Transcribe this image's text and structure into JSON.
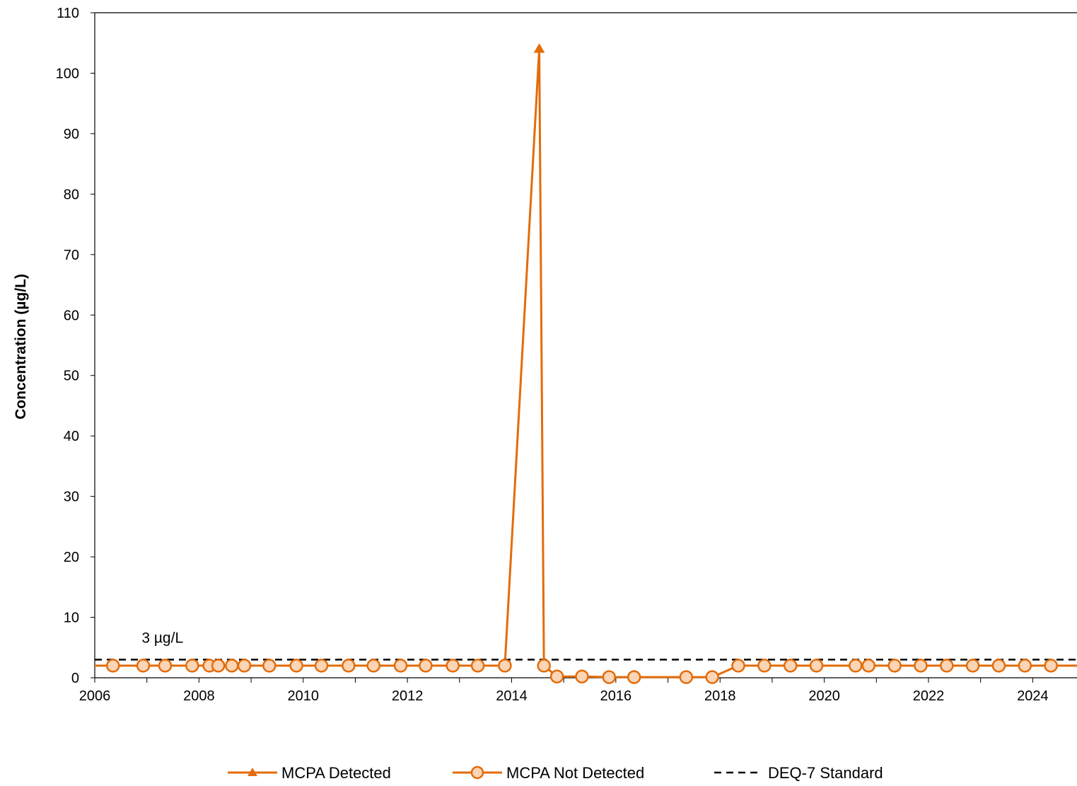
{
  "chart_data": {
    "type": "line",
    "ylabel": "Concentration (µg/L)",
    "xlabel": "",
    "xlim": [
      2006,
      2024.85
    ],
    "ylim": [
      0,
      110
    ],
    "x_ticks": [
      2006,
      2008,
      2010,
      2012,
      2014,
      2016,
      2018,
      2020,
      2022,
      2024
    ],
    "x_tick_labels": [
      "2006",
      "2008",
      "2010",
      "2012",
      "2014",
      "2016",
      "2018",
      "2020",
      "2022",
      "2024"
    ],
    "y_ticks": [
      0,
      10,
      20,
      30,
      40,
      50,
      60,
      70,
      80,
      90,
      100,
      110
    ],
    "y_tick_labels": [
      "0",
      "10",
      "20",
      "30",
      "40",
      "50",
      "60",
      "70",
      "80",
      "90",
      "100",
      "110"
    ],
    "grid": false,
    "legend_position": "bottom",
    "colors": {
      "series": "#E36C0A",
      "marker_fill": "#FBD5B5",
      "standard": "#000000"
    },
    "connector_line": {
      "x": [
        2006,
        2006.35,
        2006.93,
        2007.35,
        2007.87,
        2008.2,
        2008.37,
        2008.63,
        2008.87,
        2009.35,
        2009.87,
        2010.35,
        2010.87,
        2011.35,
        2011.87,
        2012.35,
        2012.87,
        2013.35,
        2013.87,
        2014.53,
        2014.62,
        2014.87,
        2015.35,
        2015.87,
        2016.35,
        2017.35,
        2017.85,
        2018.35,
        2018.85,
        2019.35,
        2019.85,
        2020.6,
        2020.85,
        2021.35,
        2021.85,
        2022.35,
        2022.85,
        2023.35,
        2023.85,
        2024.35,
        2024.85
      ],
      "y": [
        2,
        2,
        2,
        2,
        2,
        2,
        2,
        2,
        2,
        2,
        2,
        2,
        2,
        2,
        2,
        2,
        2,
        2,
        2,
        104,
        2,
        0.2,
        0.2,
        0.1,
        0.1,
        0.1,
        0.1,
        2,
        2,
        2,
        2,
        2,
        2,
        2,
        2,
        2,
        2,
        2,
        2,
        2,
        2
      ]
    },
    "series": [
      {
        "name": "MCPA Detected",
        "marker": "triangle",
        "x": [
          2014.53
        ],
        "y": [
          104
        ]
      },
      {
        "name": "MCPA Not Detected",
        "marker": "circle",
        "x": [
          2006.35,
          2006.93,
          2007.35,
          2007.87,
          2008.2,
          2008.37,
          2008.63,
          2008.87,
          2009.35,
          2009.87,
          2010.35,
          2010.87,
          2011.35,
          2011.87,
          2012.35,
          2012.87,
          2013.35,
          2013.87,
          2014.62,
          2014.87,
          2015.35,
          2015.87,
          2016.35,
          2017.35,
          2017.85,
          2018.35,
          2018.85,
          2019.35,
          2019.85,
          2020.6,
          2020.85,
          2021.35,
          2021.85,
          2022.35,
          2022.85,
          2023.35,
          2023.85,
          2024.35
        ],
        "y": [
          2,
          2,
          2,
          2,
          2,
          2,
          2,
          2,
          2,
          2,
          2,
          2,
          2,
          2,
          2,
          2,
          2,
          2,
          2,
          0.2,
          0.2,
          0.1,
          0.1,
          0.1,
          0.1,
          2,
          2,
          2,
          2,
          2,
          2,
          2,
          2,
          2,
          2,
          2,
          2,
          2
        ]
      },
      {
        "name": "DEQ-7 Standard",
        "style": "dashed",
        "x": [
          2006,
          2024.85
        ],
        "y": [
          3,
          3
        ]
      }
    ],
    "annotations": [
      {
        "text": "3 µg/L",
        "x": 2006.9,
        "y": 5.8
      }
    ]
  }
}
